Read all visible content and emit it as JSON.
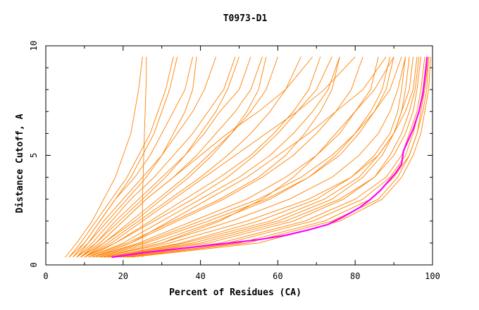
{
  "chart_data": {
    "type": "line",
    "title": "T0973-D1",
    "xlabel": "Percent of Residues (CA)",
    "ylabel": "Distance Cutoff, A",
    "xlim": [
      0,
      100
    ],
    "ylim": [
      0,
      10
    ],
    "x_ticks": [
      "0",
      "20",
      "40",
      "60",
      "80",
      "100"
    ],
    "y_ticks": [
      "0",
      "5",
      "10"
    ],
    "grid": false,
    "background_color": "#ffffff",
    "series_color": "#ff8000",
    "highlight_color": "#ff00ff",
    "highlight_series": {
      "x": [
        17,
        25,
        35,
        45,
        55,
        62,
        68,
        73,
        77,
        81,
        84,
        86.5,
        88.5,
        90.5,
        92,
        92.5,
        93.5,
        95,
        96.5,
        97.5,
        98,
        98.3,
        98.6
      ],
      "y": [
        0.35,
        0.55,
        0.75,
        0.95,
        1.15,
        1.35,
        1.6,
        1.85,
        2.2,
        2.6,
        3.0,
        3.4,
        3.8,
        4.2,
        4.6,
        5.2,
        5.6,
        6.2,
        7.0,
        7.8,
        8.5,
        9.0,
        9.5
      ]
    },
    "series": [
      {
        "x": [
          25,
          25,
          25.5,
          26,
          26
        ],
        "y": [
          0.35,
          3,
          6,
          8.5,
          9.5
        ]
      },
      {
        "x": [
          5,
          8,
          12,
          15,
          18,
          20,
          22,
          23,
          24,
          25
        ],
        "y": [
          0.35,
          1,
          2,
          3,
          4,
          5,
          6,
          7,
          8,
          9.5
        ]
      },
      {
        "x": [
          6,
          9,
          13,
          17,
          21,
          24,
          27,
          29,
          31,
          33
        ],
        "y": [
          0.35,
          1,
          2,
          3,
          4,
          5,
          6,
          7,
          8,
          9.5
        ]
      },
      {
        "x": [
          7,
          10,
          14,
          18,
          23,
          27,
          30,
          33,
          36,
          38
        ],
        "y": [
          0.35,
          1,
          2,
          3,
          4,
          5,
          6,
          7,
          8,
          9.5
        ]
      },
      {
        "x": [
          8,
          11,
          15,
          20,
          25,
          30,
          34,
          38,
          41,
          44
        ],
        "y": [
          0.35,
          1,
          2,
          3,
          4,
          5,
          6,
          7,
          8,
          9.5
        ]
      },
      {
        "x": [
          8,
          12,
          17,
          22,
          28,
          33,
          38,
          42,
          46,
          49
        ],
        "y": [
          0.35,
          1,
          2,
          3,
          4,
          5,
          6,
          7,
          8,
          9.5
        ]
      },
      {
        "x": [
          9,
          13,
          18,
          24,
          30,
          36,
          41,
          45,
          50,
          53
        ],
        "y": [
          0.35,
          1,
          2,
          3,
          4,
          5,
          6,
          7,
          8,
          9.5
        ]
      },
      {
        "x": [
          9,
          14,
          20,
          26,
          33,
          39,
          44,
          49,
          53,
          56
        ],
        "y": [
          0.35,
          1,
          2,
          3,
          4,
          5,
          6,
          7,
          8,
          9.5
        ]
      },
      {
        "x": [
          10,
          15,
          22,
          29,
          36,
          42,
          48,
          53,
          57,
          60
        ],
        "y": [
          0.35,
          1,
          2,
          3,
          4,
          5,
          6,
          7,
          8,
          9.5
        ]
      },
      {
        "x": [
          10,
          16,
          24,
          32,
          40,
          47,
          53,
          58,
          62,
          66
        ],
        "y": [
          0.35,
          1,
          2,
          3,
          4,
          5,
          6,
          7,
          8,
          9.5
        ]
      },
      {
        "x": [
          11,
          18,
          27,
          36,
          45,
          53,
          59,
          64,
          68,
          71
        ],
        "y": [
          0.35,
          1,
          2,
          3,
          4,
          5,
          6,
          7,
          8,
          9.5
        ]
      },
      {
        "x": [
          11,
          20,
          30,
          40,
          50,
          58,
          64,
          69,
          73,
          76
        ],
        "y": [
          0.35,
          1,
          2,
          3,
          4,
          5,
          6,
          7,
          8,
          9.5
        ]
      },
      {
        "x": [
          12,
          22,
          34,
          46,
          56,
          64,
          70,
          75,
          79,
          82
        ],
        "y": [
          0.35,
          1,
          2,
          3,
          4,
          5,
          6,
          7,
          8,
          9.5
        ]
      },
      {
        "x": [
          12,
          24,
          38,
          52,
          62,
          70,
          76,
          80,
          84,
          86
        ],
        "y": [
          0.35,
          1,
          2,
          3,
          4,
          5,
          6,
          7,
          8,
          9.5
        ]
      },
      {
        "x": [
          13,
          26,
          42,
          57,
          68,
          76,
          81,
          85,
          88,
          90
        ],
        "y": [
          0.35,
          1,
          2,
          3,
          4,
          5,
          6,
          7,
          8,
          9.5
        ]
      },
      {
        "x": [
          14,
          30,
          48,
          63,
          74,
          81,
          86,
          89,
          91,
          93
        ],
        "y": [
          0.35,
          1,
          2,
          3,
          4,
          5,
          6,
          7,
          8,
          9.5
        ]
      },
      {
        "x": [
          15,
          35,
          55,
          70,
          79,
          86,
          90,
          92,
          94,
          95
        ],
        "y": [
          0.35,
          1,
          2,
          3,
          4,
          5,
          6,
          7,
          8,
          9.5
        ]
      },
      {
        "x": [
          16,
          40,
          62,
          76,
          85,
          90,
          93,
          95,
          96,
          97
        ],
        "y": [
          0.35,
          1,
          2,
          3,
          4,
          5,
          6,
          7,
          8,
          9.5
        ]
      },
      {
        "x": [
          18,
          45,
          67,
          80,
          88,
          92,
          94,
          96,
          97,
          98
        ],
        "y": [
          0.35,
          1,
          2,
          3,
          4,
          5,
          6,
          7,
          8,
          9.5
        ]
      },
      {
        "x": [
          20,
          50,
          72,
          84,
          90,
          94,
          96,
          97,
          98,
          99
        ],
        "y": [
          0.35,
          1,
          2,
          3,
          4,
          5,
          6,
          7,
          8,
          9.5
        ]
      },
      {
        "x": [
          22,
          55,
          76,
          87,
          92,
          95,
          97,
          98,
          99,
          99.5
        ],
        "y": [
          0.35,
          1,
          2,
          3,
          4,
          5,
          6,
          7,
          8,
          9.5
        ]
      },
      {
        "x": [
          16,
          38,
          60,
          74,
          82,
          87,
          90,
          92,
          93,
          94
        ],
        "y": [
          0.35,
          1,
          2,
          3,
          4,
          5,
          6,
          7,
          8,
          9.5
        ]
      },
      {
        "x": [
          14,
          32,
          52,
          68,
          79,
          85,
          89,
          91,
          92,
          93
        ],
        "y": [
          0.35,
          1,
          2,
          3,
          4,
          5,
          6,
          7,
          8,
          9.5
        ]
      },
      {
        "x": [
          15,
          36,
          58,
          72,
          81,
          86,
          90,
          93,
          95,
          96
        ],
        "y": [
          0.35,
          1,
          2,
          3,
          4,
          5,
          6,
          7,
          8,
          9.5
        ]
      },
      {
        "x": [
          13,
          28,
          44,
          58,
          68,
          75,
          80,
          84,
          87,
          89
        ],
        "y": [
          0.35,
          1,
          2,
          3,
          4,
          5,
          6,
          7,
          8,
          9.5
        ]
      },
      {
        "x": [
          12,
          25,
          40,
          55,
          66,
          74,
          80,
          85,
          89,
          92
        ],
        "y": [
          0.35,
          1,
          2,
          3,
          4,
          5,
          6,
          7,
          8,
          9.5
        ]
      },
      {
        "x": [
          11,
          21,
          33,
          45,
          55,
          62,
          67,
          71,
          74,
          76
        ],
        "y": [
          0.35,
          1,
          2,
          3,
          4,
          5,
          6,
          7,
          8,
          9.5
        ]
      },
      {
        "x": [
          10,
          18,
          28,
          38,
          47,
          54,
          60,
          65,
          70,
          74
        ],
        "y": [
          0.35,
          1,
          2,
          3,
          4,
          5,
          6,
          7,
          8,
          9.5
        ]
      },
      {
        "x": [
          9,
          15,
          23,
          30,
          37,
          43,
          48,
          52,
          55,
          57
        ],
        "y": [
          0.35,
          1,
          2,
          3,
          4,
          5,
          6,
          7,
          8,
          9.5
        ]
      },
      {
        "x": [
          8,
          13,
          19,
          25,
          31,
          36,
          40,
          44,
          47,
          50
        ],
        "y": [
          0.35,
          1,
          2,
          3,
          4,
          5,
          6,
          7,
          8,
          9.5
        ]
      },
      {
        "x": [
          7,
          11,
          16,
          21,
          26,
          30,
          33,
          36,
          38,
          39
        ],
        "y": [
          0.35,
          1,
          2,
          3,
          4,
          5,
          6,
          7,
          8,
          9.5
        ]
      },
      {
        "x": [
          6,
          10,
          14,
          18,
          22,
          25,
          28,
          30,
          32,
          34
        ],
        "y": [
          0.35,
          1,
          2,
          3,
          4,
          5,
          6,
          7,
          8,
          9.5
        ]
      },
      {
        "x": [
          17,
          42,
          64,
          77,
          85,
          89,
          92,
          94,
          95.5,
          96.5
        ],
        "y": [
          0.35,
          1,
          2,
          3,
          4,
          5,
          6,
          7,
          8,
          9.5
        ]
      },
      {
        "x": [
          19,
          47,
          69,
          82,
          89,
          93,
          95,
          96.5,
          97.5,
          98.5
        ],
        "y": [
          0.35,
          1,
          2,
          3,
          4,
          5,
          6,
          7,
          8,
          9.5
        ]
      },
      {
        "x": [
          21,
          52,
          74,
          86,
          91,
          94,
          96,
          97.5,
          98.5,
          99
        ],
        "y": [
          0.35,
          1,
          2,
          3,
          4,
          5,
          6,
          7,
          8,
          9.5
        ]
      },
      {
        "x": [
          14,
          30,
          45,
          56,
          64,
          70,
          75,
          80,
          85,
          90
        ],
        "y": [
          0.35,
          1,
          2,
          3,
          4,
          5,
          6,
          7,
          8,
          9.5
        ]
      },
      {
        "x": [
          12,
          22,
          32,
          42,
          52,
          60,
          68,
          75,
          82,
          88
        ],
        "y": [
          0.35,
          1,
          2,
          3,
          4,
          5,
          6,
          7,
          8,
          9.5
        ]
      },
      {
        "x": [
          10,
          17,
          25,
          33,
          41,
          49,
          57,
          65,
          72,
          80
        ],
        "y": [
          0.35,
          1,
          2,
          3,
          4,
          5,
          6,
          7,
          8,
          9.5
        ]
      },
      {
        "x": [
          9,
          14,
          20,
          26,
          33,
          40,
          47,
          55,
          62,
          69
        ],
        "y": [
          0.35,
          1,
          2,
          3,
          4,
          5,
          6,
          7,
          8,
          9.5
        ]
      }
    ]
  }
}
